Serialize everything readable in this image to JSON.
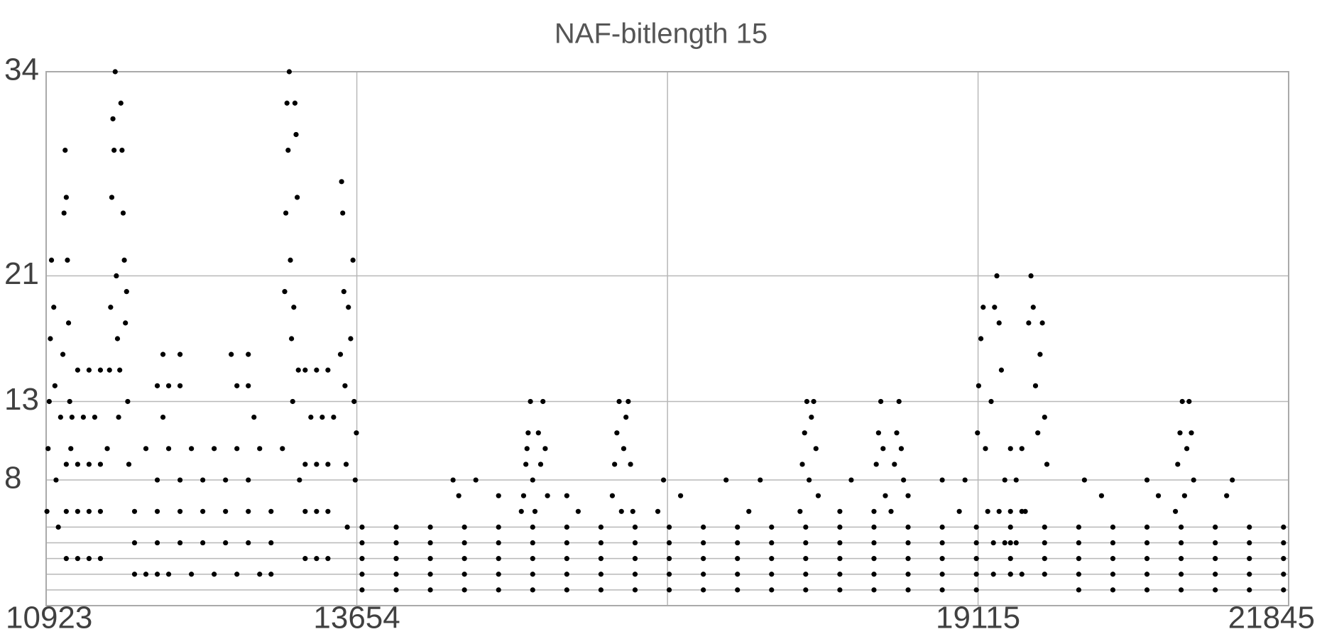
{
  "chart_data": {
    "type": "scatter",
    "title": "NAF-bitlength 15",
    "color": "#000000",
    "grid": true,
    "xlim": [
      10923,
      21845
    ],
    "xticks": [
      10923,
      13654,
      19115,
      21845
    ],
    "minor_xticks": [
      16385
    ],
    "ylim": [
      0,
      34
    ],
    "yticks": [
      8,
      13,
      21,
      34
    ],
    "minor_yticks": [
      1,
      2,
      3,
      4,
      5
    ],
    "x": [
      10930,
      10940,
      10950,
      10960,
      10970,
      10990,
      11000,
      11010,
      11030,
      11050,
      11070,
      11080,
      11090,
      11100,
      11110,
      11120,
      11130,
      11140,
      11200,
      11300,
      11400,
      11150,
      11250,
      11350,
      11100,
      11200,
      11300,
      11400,
      11100,
      11200,
      11300,
      11400,
      11100,
      11200,
      11300,
      11400,
      11460,
      11480,
      11490,
      11500,
      11510,
      11520,
      11530,
      11540,
      11550,
      11560,
      11570,
      11580,
      11590,
      11600,
      11610,
      11620,
      11630,
      11640,
      11650,
      11700,
      11800,
      11900,
      12000,
      12200,
      12400,
      12600,
      12800,
      12900,
      11700,
      11900,
      12100,
      12300,
      12500,
      12700,
      12900,
      11700,
      11900,
      12100,
      12300,
      12500,
      12700,
      12900,
      11900,
      12100,
      12300,
      12500,
      12700,
      11800,
      12000,
      12200,
      12400,
      12600,
      12800,
      11900,
      12000,
      12100,
      12600,
      12700,
      11950,
      12100,
      12550,
      12700,
      11950,
      12750,
      13000,
      13020,
      13030,
      13040,
      13050,
      13060,
      13070,
      13080,
      13090,
      13100,
      13110,
      13120,
      13130,
      13140,
      13150,
      13200,
      13300,
      13400,
      13250,
      13350,
      13450,
      13200,
      13300,
      13400,
      13200,
      13300,
      13400,
      13200,
      13300,
      13400,
      13510,
      13520,
      13530,
      13540,
      13550,
      13560,
      13570,
      13580,
      13600,
      13620,
      13630,
      13640,
      13650,
      13700,
      14000,
      14300,
      14600,
      14900,
      15200,
      15500,
      15800,
      16100,
      16400,
      16700,
      17000,
      17300,
      17600,
      17900,
      18200,
      18500,
      18800,
      19100,
      20000,
      20300,
      20600,
      20900,
      21200,
      21500,
      21800,
      13700,
      14000,
      14300,
      14600,
      14900,
      15200,
      15500,
      15800,
      16100,
      16400,
      16700,
      17000,
      17300,
      17600,
      17900,
      18200,
      18500,
      18800,
      19100,
      19400,
      19700,
      20000,
      20300,
      20600,
      20900,
      21200,
      21500,
      21800,
      13700,
      14000,
      14300,
      14600,
      14900,
      15200,
      15500,
      15800,
      16100,
      16400,
      16700,
      17000,
      17300,
      17600,
      17900,
      18200,
      18500,
      18800,
      19100,
      19400,
      19700,
      20000,
      20300,
      20600,
      20900,
      21200,
      21500,
      21800,
      13700,
      14000,
      14300,
      14600,
      14900,
      15200,
      15500,
      15800,
      16100,
      16400,
      16700,
      17000,
      17300,
      17600,
      17900,
      18200,
      18500,
      18800,
      19100,
      19400,
      19700,
      20000,
      20300,
      20600,
      20900,
      21200,
      21500,
      21800,
      13700,
      14000,
      14300,
      14600,
      14900,
      15200,
      15500,
      15800,
      16100,
      16400,
      16700,
      17000,
      17300,
      17600,
      17900,
      18200,
      18500,
      18800,
      19100,
      19400,
      19700,
      20000,
      20300,
      20600,
      20900,
      21200,
      21500,
      21800,
      15100,
      15120,
      15140,
      15150,
      15160,
      15180,
      15200,
      15220,
      15250,
      15270,
      15290,
      15310,
      15330,
      14500,
      14550,
      14700,
      14900,
      15500,
      15600,
      15900,
      15920,
      15940,
      15960,
      15980,
      16000,
      16020,
      16040,
      16060,
      16080,
      16300,
      16350,
      16500,
      16900,
      17100,
      17200,
      17550,
      17570,
      17590,
      17610,
      17630,
      17650,
      17670,
      17690,
      17710,
      18000,
      17900,
      18200,
      18220,
      18240,
      18260,
      18280,
      18300,
      18350,
      18380,
      18400,
      18420,
      18440,
      18460,
      18500,
      18800,
      19000,
      18950,
      19110,
      19120,
      19140,
      19160,
      19180,
      19200,
      19230,
      19260,
      19280,
      19300,
      19320,
      19350,
      19400,
      19450,
      19500,
      19530,
      19560,
      19580,
      19600,
      19620,
      19640,
      19660,
      19680,
      19700,
      19720,
      19250,
      19350,
      19450,
      19300,
      19400,
      19500,
      19250,
      19400,
      19500,
      20050,
      20200,
      20700,
      20600,
      20850,
      20870,
      20890,
      20910,
      20930,
      20950,
      20970,
      20990,
      21010,
      21300,
      21350
    ],
    "values": [
      6,
      10,
      13,
      17,
      22,
      19,
      14,
      8,
      5,
      12,
      16,
      25,
      29,
      26,
      22,
      18,
      13,
      10,
      15,
      15,
      15,
      12,
      12,
      12,
      9,
      9,
      9,
      9,
      6,
      6,
      6,
      6,
      3,
      3,
      3,
      3,
      10,
      15,
      19,
      26,
      31,
      29,
      34,
      21,
      17,
      12,
      15,
      32,
      29,
      25,
      22,
      18,
      20,
      13,
      9,
      2,
      2,
      2,
      2,
      2,
      2,
      2,
      2,
      2,
      4,
      4,
      4,
      4,
      4,
      4,
      4,
      6,
      6,
      6,
      6,
      6,
      6,
      6,
      8,
      8,
      8,
      8,
      8,
      10,
      10,
      10,
      10,
      10,
      10,
      14,
      14,
      14,
      14,
      14,
      16,
      16,
      16,
      16,
      12,
      12,
      10,
      20,
      25,
      32,
      29,
      34,
      22,
      17,
      13,
      19,
      32,
      30,
      26,
      15,
      8,
      15,
      15,
      15,
      12,
      12,
      12,
      9,
      9,
      9,
      6,
      6,
      6,
      3,
      3,
      3,
      16,
      27,
      25,
      20,
      14,
      9,
      5,
      19,
      17,
      22,
      13,
      8,
      11,
      1,
      1,
      1,
      1,
      1,
      1,
      1,
      1,
      1,
      1,
      1,
      1,
      1,
      1,
      1,
      1,
      1,
      1,
      1,
      1,
      1,
      1,
      1,
      1,
      1,
      1,
      2,
      2,
      2,
      2,
      2,
      2,
      2,
      2,
      2,
      2,
      2,
      2,
      2,
      2,
      2,
      2,
      2,
      2,
      2,
      2,
      2,
      2,
      2,
      2,
      2,
      2,
      2,
      2,
      3,
      3,
      3,
      3,
      3,
      3,
      3,
      3,
      3,
      3,
      3,
      3,
      3,
      3,
      3,
      3,
      3,
      3,
      3,
      3,
      3,
      3,
      3,
      3,
      3,
      3,
      3,
      3,
      4,
      4,
      4,
      4,
      4,
      4,
      4,
      4,
      4,
      4,
      4,
      4,
      4,
      4,
      4,
      4,
      4,
      4,
      4,
      4,
      4,
      4,
      4,
      4,
      4,
      4,
      4,
      4,
      5,
      5,
      5,
      5,
      5,
      5,
      5,
      5,
      5,
      5,
      5,
      5,
      5,
      5,
      5,
      5,
      5,
      5,
      5,
      5,
      5,
      5,
      5,
      5,
      5,
      5,
      5,
      5,
      6,
      7,
      9,
      10,
      11,
      13,
      8,
      6,
      11,
      9,
      13,
      10,
      7,
      8,
      7,
      8,
      7,
      7,
      6,
      7,
      9,
      11,
      13,
      6,
      10,
      12,
      13,
      9,
      6,
      6,
      8,
      7,
      8,
      6,
      8,
      6,
      9,
      11,
      13,
      8,
      12,
      13,
      10,
      7,
      8,
      6,
      6,
      9,
      11,
      13,
      10,
      7,
      6,
      9,
      11,
      13,
      10,
      8,
      7,
      8,
      8,
      6,
      11,
      14,
      17,
      19,
      10,
      6,
      13,
      19,
      21,
      18,
      15,
      8,
      10,
      8,
      10,
      6,
      18,
      21,
      19,
      14,
      11,
      16,
      18,
      12,
      9,
      4,
      4,
      4,
      6,
      6,
      6,
      2,
      2,
      2,
      8,
      7,
      7,
      8,
      6,
      9,
      11,
      13,
      7,
      10,
      13,
      11,
      8,
      7,
      8
    ]
  }
}
